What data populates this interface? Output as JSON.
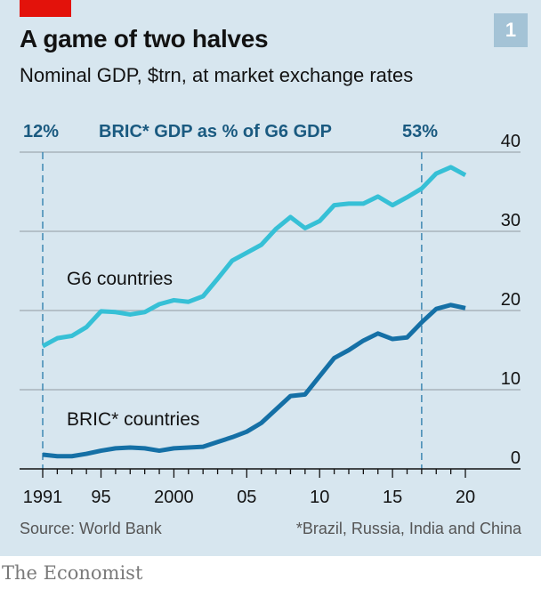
{
  "header": {
    "title": "A game of two halves",
    "subtitle": "Nominal GDP, $trn, at market exchange rates",
    "badge": "1"
  },
  "annotations": {
    "left_pct": "12%",
    "center_label": "BRIC* GDP as % of G6 GDP",
    "right_pct": "53%",
    "marker_years": [
      1991,
      2017
    ]
  },
  "footer": {
    "source": "Source: World Bank",
    "note": "*Brazil, Russia, India and China",
    "brand": "The Economist"
  },
  "colors": {
    "g6": "#36c0d6",
    "bric": "#1570a6",
    "accent_red": "#e3120b",
    "annotation": "#1a5a80"
  },
  "chart_data": {
    "type": "line",
    "title": "A game of two halves",
    "subtitle": "Nominal GDP, $trn, at market exchange rates",
    "xlabel": "",
    "ylabel": "$trn",
    "x": [
      1991,
      1992,
      1993,
      1994,
      1995,
      1996,
      1997,
      1998,
      1999,
      2000,
      2001,
      2002,
      2003,
      2004,
      2005,
      2006,
      2007,
      2008,
      2009,
      2010,
      2011,
      2012,
      2013,
      2014,
      2015,
      2016,
      2017,
      2018,
      2019,
      2020
    ],
    "xlim": [
      1989.7,
      2023.8
    ],
    "ylim": [
      0,
      40
    ],
    "x_ticks": [
      1991,
      1995,
      2000,
      2005,
      2010,
      2015,
      2020
    ],
    "x_tick_labels": [
      "1991",
      "95",
      "2000",
      "05",
      "10",
      "15",
      "20"
    ],
    "y_ticks": [
      0,
      10,
      20,
      30,
      40
    ],
    "y_tick_labels": [
      "0",
      "10",
      "20",
      "30",
      "40"
    ],
    "grid": true,
    "legend": "inline",
    "series": [
      {
        "name": "G6 countries",
        "label": "G6 countries",
        "values": [
          15.5,
          16.5,
          16.8,
          17.9,
          19.9,
          19.8,
          19.5,
          19.8,
          20.8,
          21.3,
          21.1,
          21.8,
          24.0,
          26.3,
          27.3,
          28.3,
          30.3,
          31.8,
          30.4,
          31.3,
          33.3,
          33.5,
          33.5,
          34.4,
          33.3,
          34.3,
          35.4,
          37.3,
          38.1,
          37.1
        ]
      },
      {
        "name": "BRIC* countries",
        "label": "BRIC* countries",
        "values": [
          1.8,
          1.6,
          1.6,
          1.9,
          2.3,
          2.6,
          2.7,
          2.6,
          2.3,
          2.6,
          2.7,
          2.8,
          3.4,
          4.0,
          4.7,
          5.8,
          7.5,
          9.2,
          9.4,
          11.7,
          14.0,
          15.0,
          16.2,
          17.1,
          16.4,
          16.6,
          18.5,
          20.2,
          20.7,
          20.3
        ]
      }
    ],
    "annotations": [
      {
        "x": 1991,
        "text": "12%"
      },
      {
        "x": 2017,
        "text": "53%"
      }
    ]
  }
}
